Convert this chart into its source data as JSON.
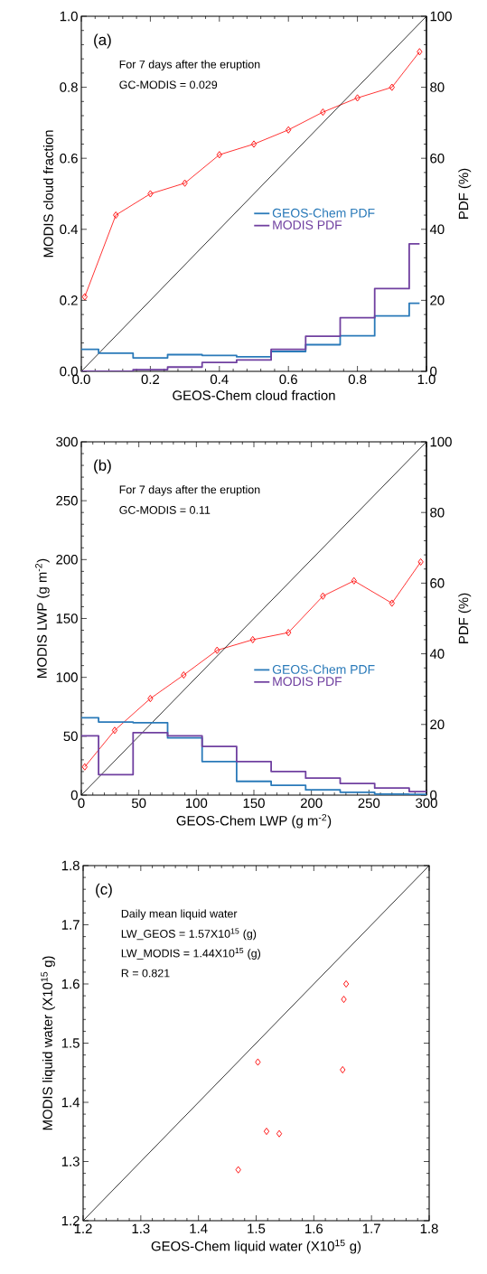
{
  "chart_data": [
    {
      "type": "line",
      "xlabel": "GEOS-Chem cloud fraction",
      "ylabel": "MODIS cloud fraction",
      "y2label": "PDF (%)",
      "xlim": [
        0,
        1
      ],
      "ylim": [
        0,
        1
      ],
      "y2lim": [
        0,
        100
      ],
      "xticks": [
        {
          "value": 0,
          "label": "0.0"
        },
        {
          "value": 0.2,
          "label": "0.2"
        },
        {
          "value": 0.4,
          "label": "0.4"
        },
        {
          "value": 0.6,
          "label": "0.6"
        },
        {
          "value": 0.8,
          "label": "0.8"
        },
        {
          "value": 1,
          "label": "1.0"
        }
      ],
      "yticks": [
        {
          "value": 0,
          "label": "0.0"
        },
        {
          "value": 0.2,
          "label": "0.2"
        },
        {
          "value": 0.4,
          "label": "0.4"
        },
        {
          "value": 0.6,
          "label": "0.6"
        },
        {
          "value": 0.8,
          "label": "0.8"
        },
        {
          "value": 1,
          "label": "1.0"
        }
      ],
      "y2ticks": [
        0,
        20,
        40,
        60,
        80,
        100
      ],
      "legend": "right",
      "annotations": [
        "(a)",
        "For 7 days after the eruption",
        "GC-MODIS = 0.029"
      ],
      "series": [
        {
          "color": "#ff0000",
          "marker": "diamond",
          "x": [
            0.01,
            0.1,
            0.2,
            0.3,
            0.4,
            0.5,
            0.6,
            0.7,
            0.8,
            0.9,
            0.98
          ],
          "values": [
            0.21,
            0.44,
            0.5,
            0.53,
            0.61,
            0.64,
            0.68,
            0.73,
            0.77,
            0.8,
            0.9
          ]
        },
        {
          "color": "#000000",
          "x": [
            0,
            1
          ],
          "values": [
            0,
            1
          ]
        },
        {
          "type": "histogram",
          "axis": "y2",
          "name": "GEOS-Chem PDF",
          "color": "#2a7ab9",
          "bins": [
            0,
            0.05,
            0.15,
            0.25,
            0.35,
            0.45,
            0.55,
            0.65,
            0.75,
            0.85,
            0.95,
            0.98
          ],
          "values": [
            6.2,
            5.1,
            3.8,
            4.7,
            4.5,
            4.1,
            5.6,
            7.5,
            10.0,
            15.6,
            19.2
          ]
        },
        {
          "type": "histogram",
          "axis": "y2",
          "name": "MODIS PDF",
          "color": "#7040a0",
          "bins": [
            0,
            0.05,
            0.15,
            0.25,
            0.35,
            0.45,
            0.55,
            0.65,
            0.75,
            0.85,
            0.95,
            0.98
          ],
          "values": [
            0,
            0,
            0.5,
            1.2,
            2.5,
            3.2,
            6.2,
            9.9,
            15.1,
            23.3,
            35.9
          ]
        }
      ]
    },
    {
      "type": "line",
      "xlabel": "GEOS-Chem LWP (g m$^{-2}$)",
      "ylabel": "MODIS LWP (g m$^{-2}$)",
      "y2label": "PDF (%)",
      "xlim": [
        0,
        300
      ],
      "ylim": [
        0,
        300
      ],
      "y2lim": [
        0,
        100
      ],
      "xticks": [
        0,
        50,
        100,
        150,
        200,
        250,
        300
      ],
      "yticks": [
        0,
        50,
        100,
        150,
        200,
        250,
        300
      ],
      "y2ticks": [
        0,
        20,
        40,
        60,
        80,
        100
      ],
      "legend": "bottom right",
      "annotations": [
        "(b)",
        "For 7 days after the eruption",
        "GC-MODIS = 0.11"
      ],
      "series": [
        {
          "color": "#ff0000",
          "marker": "diamond",
          "x": [
            3,
            29,
            60,
            89,
            118,
            149,
            180,
            210,
            237,
            270,
            295
          ],
          "values": [
            24,
            55,
            82,
            102,
            123,
            132,
            138,
            169,
            182,
            163,
            198
          ]
        },
        {
          "color": "#000000",
          "x": [
            0,
            300
          ],
          "values": [
            0,
            300
          ]
        },
        {
          "type": "histogram",
          "axis": "y2",
          "name": "GEOS-Chem PDF",
          "color": "#2a7ab9",
          "bins": [
            0,
            15,
            45,
            75,
            105,
            135,
            165,
            195,
            225,
            255,
            285,
            300
          ],
          "values": [
            21.9,
            20.7,
            20.5,
            16.2,
            9.5,
            3.9,
            2.8,
            1.5,
            0.8,
            0.3,
            0.2
          ]
        },
        {
          "type": "histogram",
          "axis": "y2",
          "name": "MODIS PDF",
          "color": "#7040a0",
          "bins": [
            0,
            15,
            45,
            75,
            105,
            135,
            165,
            195,
            225,
            255,
            285,
            300
          ],
          "values": [
            16.8,
            5.8,
            17.7,
            16.8,
            13.8,
            9.5,
            6.7,
            4.8,
            3.3,
            2.0,
            1.0
          ]
        }
      ]
    },
    {
      "type": "scatter",
      "xlabel": "GEOS-Chem liquid water (X10$^{15}$ g)",
      "ylabel": "MODIS liquid water (X10$^{15}$ g)",
      "xlim": [
        1.2,
        1.8
      ],
      "ylim": [
        1.2,
        1.8
      ],
      "xticks": [
        1.2,
        1.3,
        1.4,
        1.5,
        1.6,
        1.7,
        1.8
      ],
      "yticks": [
        1.2,
        1.3,
        1.4,
        1.5,
        1.6,
        1.7,
        1.8
      ],
      "annotations": [
        "(c)",
        "Daily mean liquid water",
        "LW_GEOS = 1.57X10$^{15}$ (g)",
        "LW_MODIS = 1.44X10$^{15}$ (g)",
        "R = 0.821"
      ],
      "series": [
        {
          "color": "#ff0000",
          "marker": "diamond",
          "x": [
            1.469,
            1.503,
            1.518,
            1.54,
            1.65,
            1.652,
            1.656
          ],
          "values": [
            1.286,
            1.468,
            1.351,
            1.347,
            1.455,
            1.574,
            1.6
          ]
        },
        {
          "type": "line",
          "color": "#000000",
          "x": [
            1.2,
            1.8
          ],
          "values": [
            1.2,
            1.8
          ]
        }
      ]
    }
  ]
}
